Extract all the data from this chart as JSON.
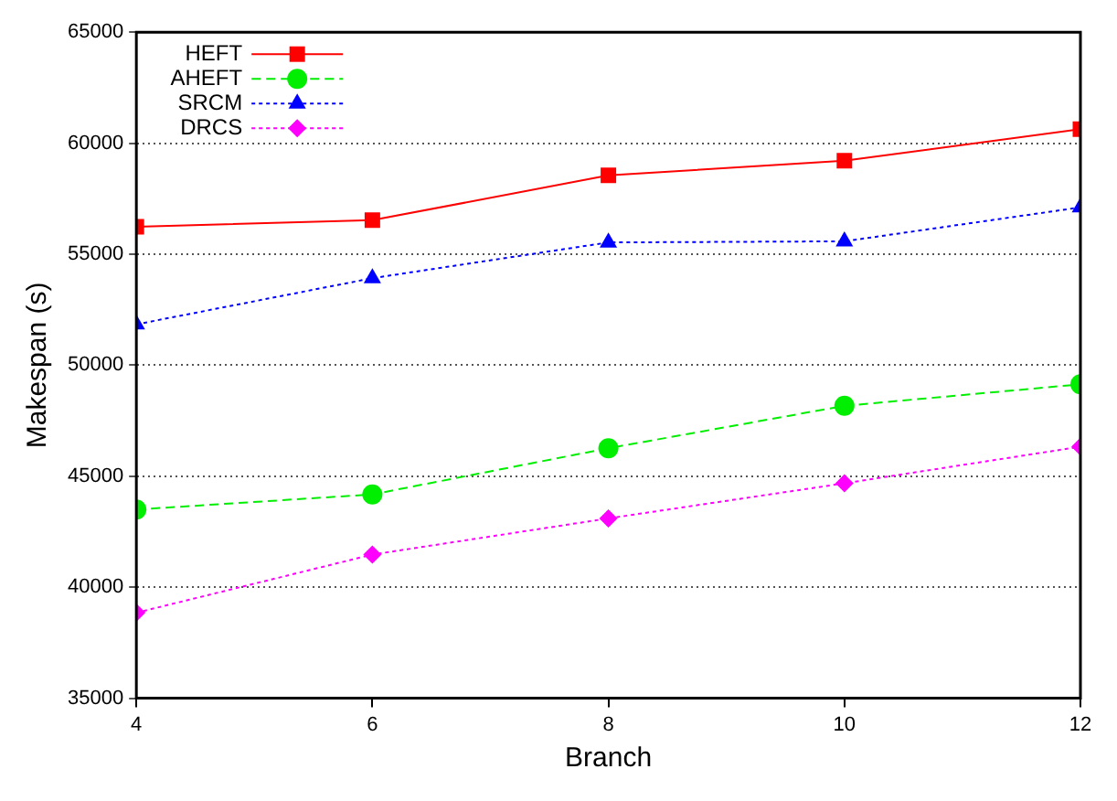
{
  "chart_data": {
    "type": "line",
    "xlabel": "Branch",
    "ylabel": "Makespan (s)",
    "x": [
      4,
      6,
      8,
      10,
      12
    ],
    "series": [
      {
        "name": "HEFT",
        "color": "#ff0000",
        "marker": "square",
        "line_style": "solid",
        "values": [
          56240,
          56530,
          58550,
          59210,
          60630
        ]
      },
      {
        "name": "AHEFT",
        "color": "#00ee00",
        "marker": "circle",
        "line_style": "dashed",
        "values": [
          43500,
          44180,
          46260,
          48170,
          49140
        ]
      },
      {
        "name": "SRCM",
        "color": "#0000ff",
        "marker": "triangle",
        "line_style": "dotted",
        "values": [
          51840,
          53920,
          55530,
          55580,
          57110
        ]
      },
      {
        "name": "DRCS",
        "color": "#ff00ff",
        "marker": "diamond",
        "line_style": "dotted",
        "values": [
          38850,
          41470,
          43100,
          44680,
          46330
        ]
      }
    ],
    "xlim": [
      4,
      12
    ],
    "xticks": [
      4,
      6,
      8,
      10,
      12
    ],
    "ylim": [
      35000,
      65000
    ],
    "yticks": [
      35000,
      40000,
      45000,
      50000,
      55000,
      60000,
      65000
    ],
    "grid": "y",
    "legend": "top left"
  }
}
